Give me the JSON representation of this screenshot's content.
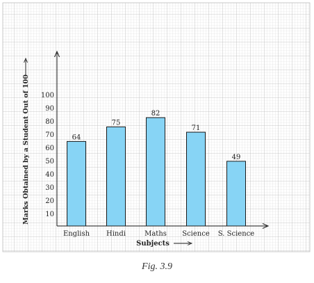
{
  "chart_data": {
    "type": "bar",
    "categories": [
      "English",
      "Hindi",
      "Maths",
      "Science",
      "S. Science"
    ],
    "values": [
      64,
      75,
      82,
      71,
      49
    ],
    "data_labels": [
      "64",
      "75",
      "82",
      "71",
      "49"
    ],
    "xlabel": "Subjects",
    "ylabel": "Marks Obtained by a Student Out of 100",
    "y_ticks": [
      "10",
      "20",
      "30",
      "40",
      "50",
      "60",
      "70",
      "80",
      "90",
      "100"
    ],
    "ylim": [
      0,
      100
    ],
    "grid": true,
    "bar_color": "#87d4f5",
    "bar_edge_color": "#1a1a1a",
    "grid_color": "#cfcfcf",
    "axis_arrows": true
  },
  "caption": "Fig. 3.9"
}
